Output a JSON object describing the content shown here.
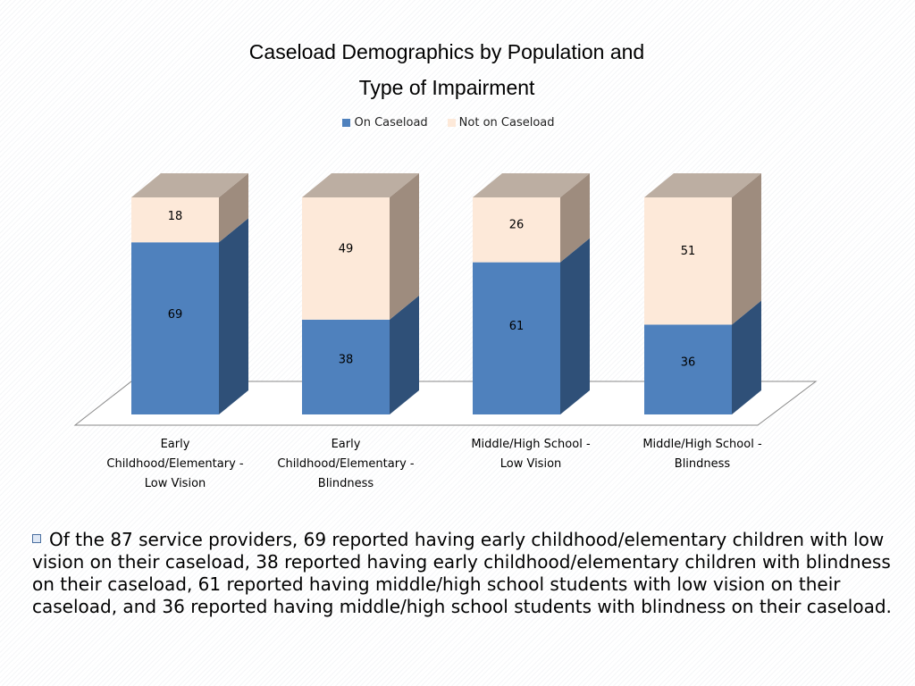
{
  "chart_data": {
    "type": "bar",
    "stacked": true,
    "three_d": true,
    "title_lines": [
      "Caseload Demographics by Population and",
      "Type of Impairment"
    ],
    "categories": [
      [
        "Early",
        "Childhood/Elementary -",
        "Low Vision"
      ],
      [
        "Early",
        "Childhood/Elementary -",
        "Blindness"
      ],
      [
        "Middle/High School -",
        "Low Vision"
      ],
      [
        "Middle/High School -",
        "Blindness"
      ]
    ],
    "series": [
      {
        "name": "On Caseload",
        "values": [
          69,
          38,
          61,
          36
        ],
        "color": "#4f81bd"
      },
      {
        "name": "Not on Caseload",
        "values": [
          18,
          49,
          26,
          51
        ],
        "color": "#fde9d9"
      }
    ],
    "legend_position": "top",
    "grid": false,
    "ylim": [
      0,
      87
    ]
  },
  "bullet": {
    "icon": "hollow-square-icon",
    "text": "Of the 87 service providers, 69 reported having early childhood/elementary children with low vision on their caseload, 38 reported having early childhood/elementary children with blindness on their caseload, 61 reported having middle/high school students with low vision on their caseload, and 36 reported having middle/high school students with blindness on their caseload."
  }
}
